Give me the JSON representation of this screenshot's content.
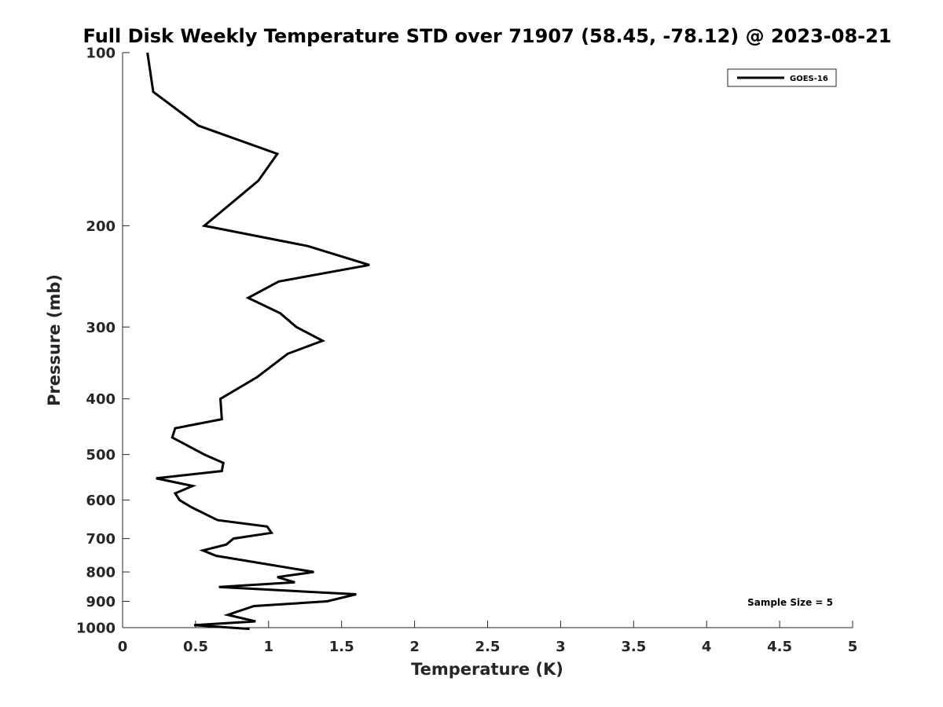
{
  "chart_data": {
    "type": "line",
    "title": "Full Disk Weekly Temperature STD over 71907 (58.45, -78.12) @ 2023-08-21",
    "xlabel": "Temperature (K)",
    "ylabel": "Pressure (mb)",
    "xlim": [
      0,
      5
    ],
    "ylim": [
      100,
      1000
    ],
    "y_scale": "log",
    "y_reversed": true,
    "x_ticks": [
      "0",
      "0.5",
      "1",
      "1.5",
      "2",
      "2.5",
      "3",
      "3.5",
      "4",
      "4.5",
      "5"
    ],
    "y_ticks": [
      "100",
      "200",
      "300",
      "400",
      "500",
      "600",
      "700",
      "800",
      "900",
      "1000"
    ],
    "grid": false,
    "legend_position": "top-right",
    "annotation": "Sample Size = 5",
    "series": [
      {
        "name": "GOES-16",
        "color": "#000000",
        "x": [
          0.17,
          0.21,
          0.52,
          1.06,
          0.93,
          0.56,
          1.27,
          1.69,
          1.07,
          0.86,
          1.08,
          1.19,
          1.37,
          1.13,
          0.92,
          0.67,
          0.68,
          0.36,
          0.34,
          0.56,
          0.69,
          0.68,
          0.23,
          0.48,
          0.36,
          0.39,
          0.47,
          0.65,
          0.99,
          1.02,
          0.76,
          0.71,
          0.55,
          0.64,
          1.31,
          1.06,
          1.18,
          0.66,
          1.6,
          1.4,
          0.9,
          0.72,
          0.91,
          0.49,
          0.87
        ],
        "y": [
          100,
          117,
          134,
          150,
          167,
          200,
          217,
          234,
          250,
          267,
          284,
          300,
          317,
          334,
          367,
          400,
          434,
          450,
          467,
          500,
          517,
          534,
          550,
          567,
          584,
          600,
          617,
          650,
          667,
          684,
          700,
          717,
          734,
          750,
          800,
          817,
          834,
          850,
          875,
          900,
          917,
          950,
          975,
          990,
          1005
        ]
      }
    ]
  }
}
